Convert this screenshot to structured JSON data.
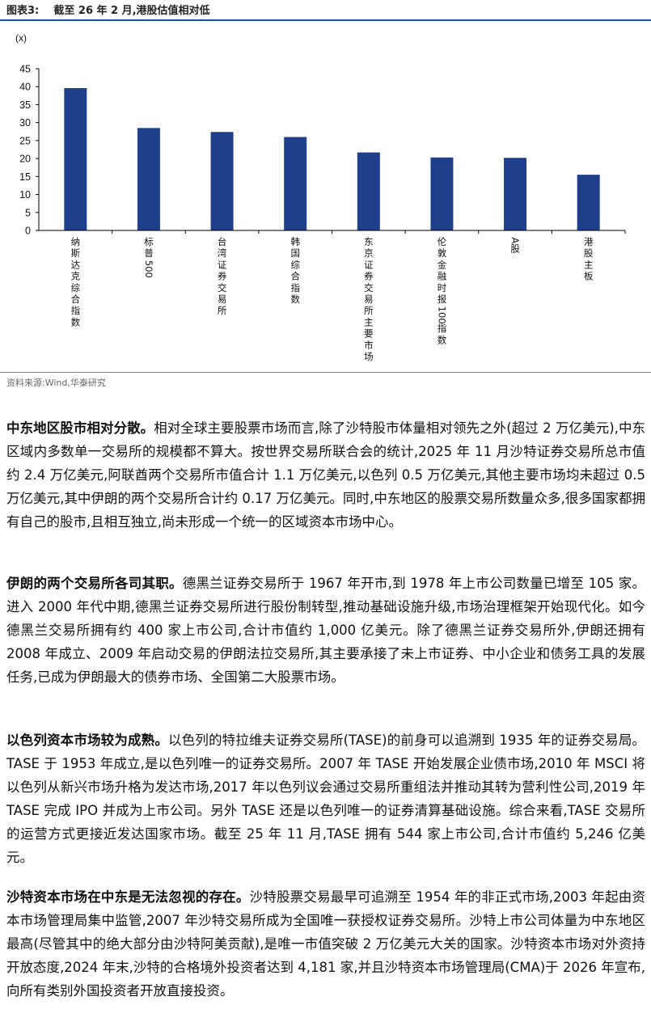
{
  "figure": {
    "title_prefix": "图表3:",
    "title": "截至 26 年 2 月,港股估值相对低",
    "source": "资料来源:Wind,华泰研究"
  },
  "chart_data": {
    "type": "bar",
    "ylabel": "(x)",
    "ylim": [
      0,
      45
    ],
    "yticks": [
      0,
      5,
      10,
      15,
      20,
      25,
      30,
      35,
      40,
      45
    ],
    "categories": [
      "纳斯达克综合指数",
      "标普500",
      "台湾证券交易所",
      "韩国综合指数",
      "东京证券交易所主要市场",
      "伦敦金融时报100指数",
      "A股",
      "港股主板"
    ],
    "values": [
      39.6,
      28.5,
      27.4,
      26.0,
      21.7,
      20.3,
      20.2,
      15.5
    ],
    "bar_color": "#1f3f8a",
    "grid": false
  },
  "paragraphs": [
    {
      "lead": "中东地区股市相对分散。",
      "text": "相对全球主要股票市场而言,除了沙特股市体量相对领先之外(超过 2 万亿美元),中东区域内多数单一交易所的规模都不算大。按世界交易所联合会的统计,2025 年 11 月沙特证券交易所总市值约 2.4 万亿美元,阿联酋两个交易所市值合计 1.1 万亿美元,以色列 0.5 万亿美元,其他主要市场均未超过 0.5 万亿美元,其中伊朗的两个交易所合计约 0.17 万亿美元。同时,中东地区的股票交易所数量众多,很多国家都拥有自己的股市,且相互独立,尚未形成一个统一的区域资本市场中心。"
    },
    {
      "lead": "伊朗的两个交易所各司其职。",
      "text": "德黑兰证券交易所于 1967 年开市,到 1978 年上市公司数量已增至 105 家。进入 2000 年代中期,德黑兰证券交易所进行股份制转型,推动基础设施升级,市场治理框架开始现代化。如今德黑兰交易所拥有约 400 家上市公司,合计市值约 1,000 亿美元。除了德黑兰证券交易所外,伊朗还拥有 2008 年成立、2009 年启动交易的伊朗法拉交易所,其主要承接了未上市证券、中小企业和债务工具的发展任务,已成为伊朗最大的债券市场、全国第二大股票市场。"
    },
    {
      "lead": "以色列资本市场较为成熟。",
      "text": "以色列的特拉维夫证券交易所(TASE)的前身可以追溯到 1935 年的证券交易局。TASE 于 1953 年成立,是以色列唯一的证券交易所。2007 年 TASE 开始发展企业债市场,2010 年 MSCI 将以色列从新兴市场升格为发达市场,2017 年以色列议会通过交易所重组法并推动其转为营利性公司,2019 年 TASE 完成 IPO 并成为上市公司。另外 TASE 还是以色列唯一的证券清算基础设施。综合来看,TASE 交易所的运营方式更接近发达国家市场。截至 25 年 11 月,TASE 拥有 544 家上市公司,合计市值约 5,246 亿美元。"
    },
    {
      "lead": "沙特资本市场在中东是无法忽视的存在。",
      "text": "沙特股票交易最早可追溯至 1954 年的非正式市场,2003 年起由资本市场管理局集中监管,2007 年沙特交易所成为全国唯一获授权证券交易所。沙特上市公司体量为中东地区最高(尽管其中的绝大部分由沙特阿美贡献),是唯一市值突破 2 万亿美元大关的国家。沙特资本市场对外资持开放态度,2024 年末,沙特的合格境外投资者达到 4,181 家,并且沙特资本市场管理局(CMA)于 2026 年宣布,向所有类别外国投资者开放直接投资。"
    }
  ]
}
